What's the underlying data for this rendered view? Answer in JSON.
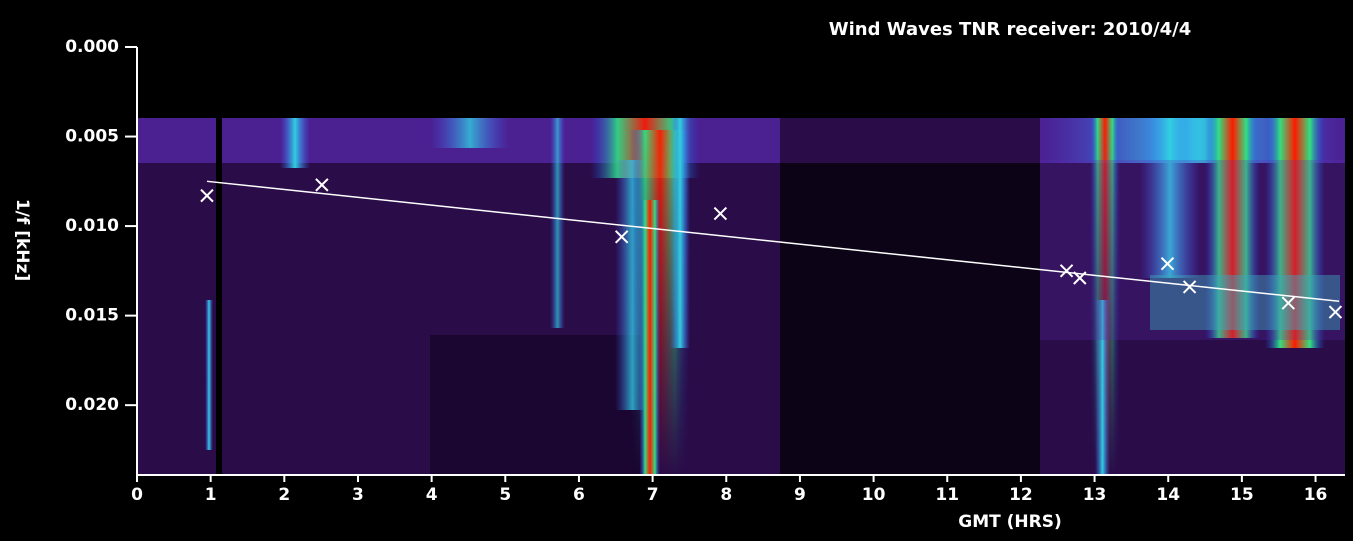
{
  "chart_data": {
    "type": "scatter",
    "title": "Wind Waves TNR receiver: 2010/4/4",
    "x_label": "GMT (HRS)",
    "y_label": "1/f [kHz]",
    "xlim": [
      0,
      16.4
    ],
    "ylim": [
      0.0,
      0.0239
    ],
    "y_inverted": true,
    "xticks": [
      0,
      1,
      2,
      3,
      4,
      5,
      6,
      7,
      8,
      9,
      10,
      11,
      12,
      13,
      14,
      15,
      16
    ],
    "yticks": [
      {
        "value": 0,
        "label": "0.000"
      },
      0.005,
      {
        "value": 0.01,
        "label": "0.010"
      },
      0.015,
      {
        "value": 0.02,
        "label": "0.020"
      }
    ],
    "series": [
      {
        "type": "scatter",
        "color": "#ffffff",
        "x": [
          0.95,
          2.51,
          6.58,
          7.92,
          12.62,
          12.8,
          13.99,
          14.29,
          15.63,
          16.27
        ],
        "values": [
          0.0083,
          0.0077,
          0.0106,
          0.0093,
          0.0125,
          0.0129,
          0.0121,
          0.0134,
          0.0143,
          0.0148
        ]
      },
      {
        "type": "line",
        "color": "#ffffff",
        "x": [
          0.95,
          16.32
        ],
        "values": [
          0.0075,
          0.0142
        ]
      }
    ]
  }
}
